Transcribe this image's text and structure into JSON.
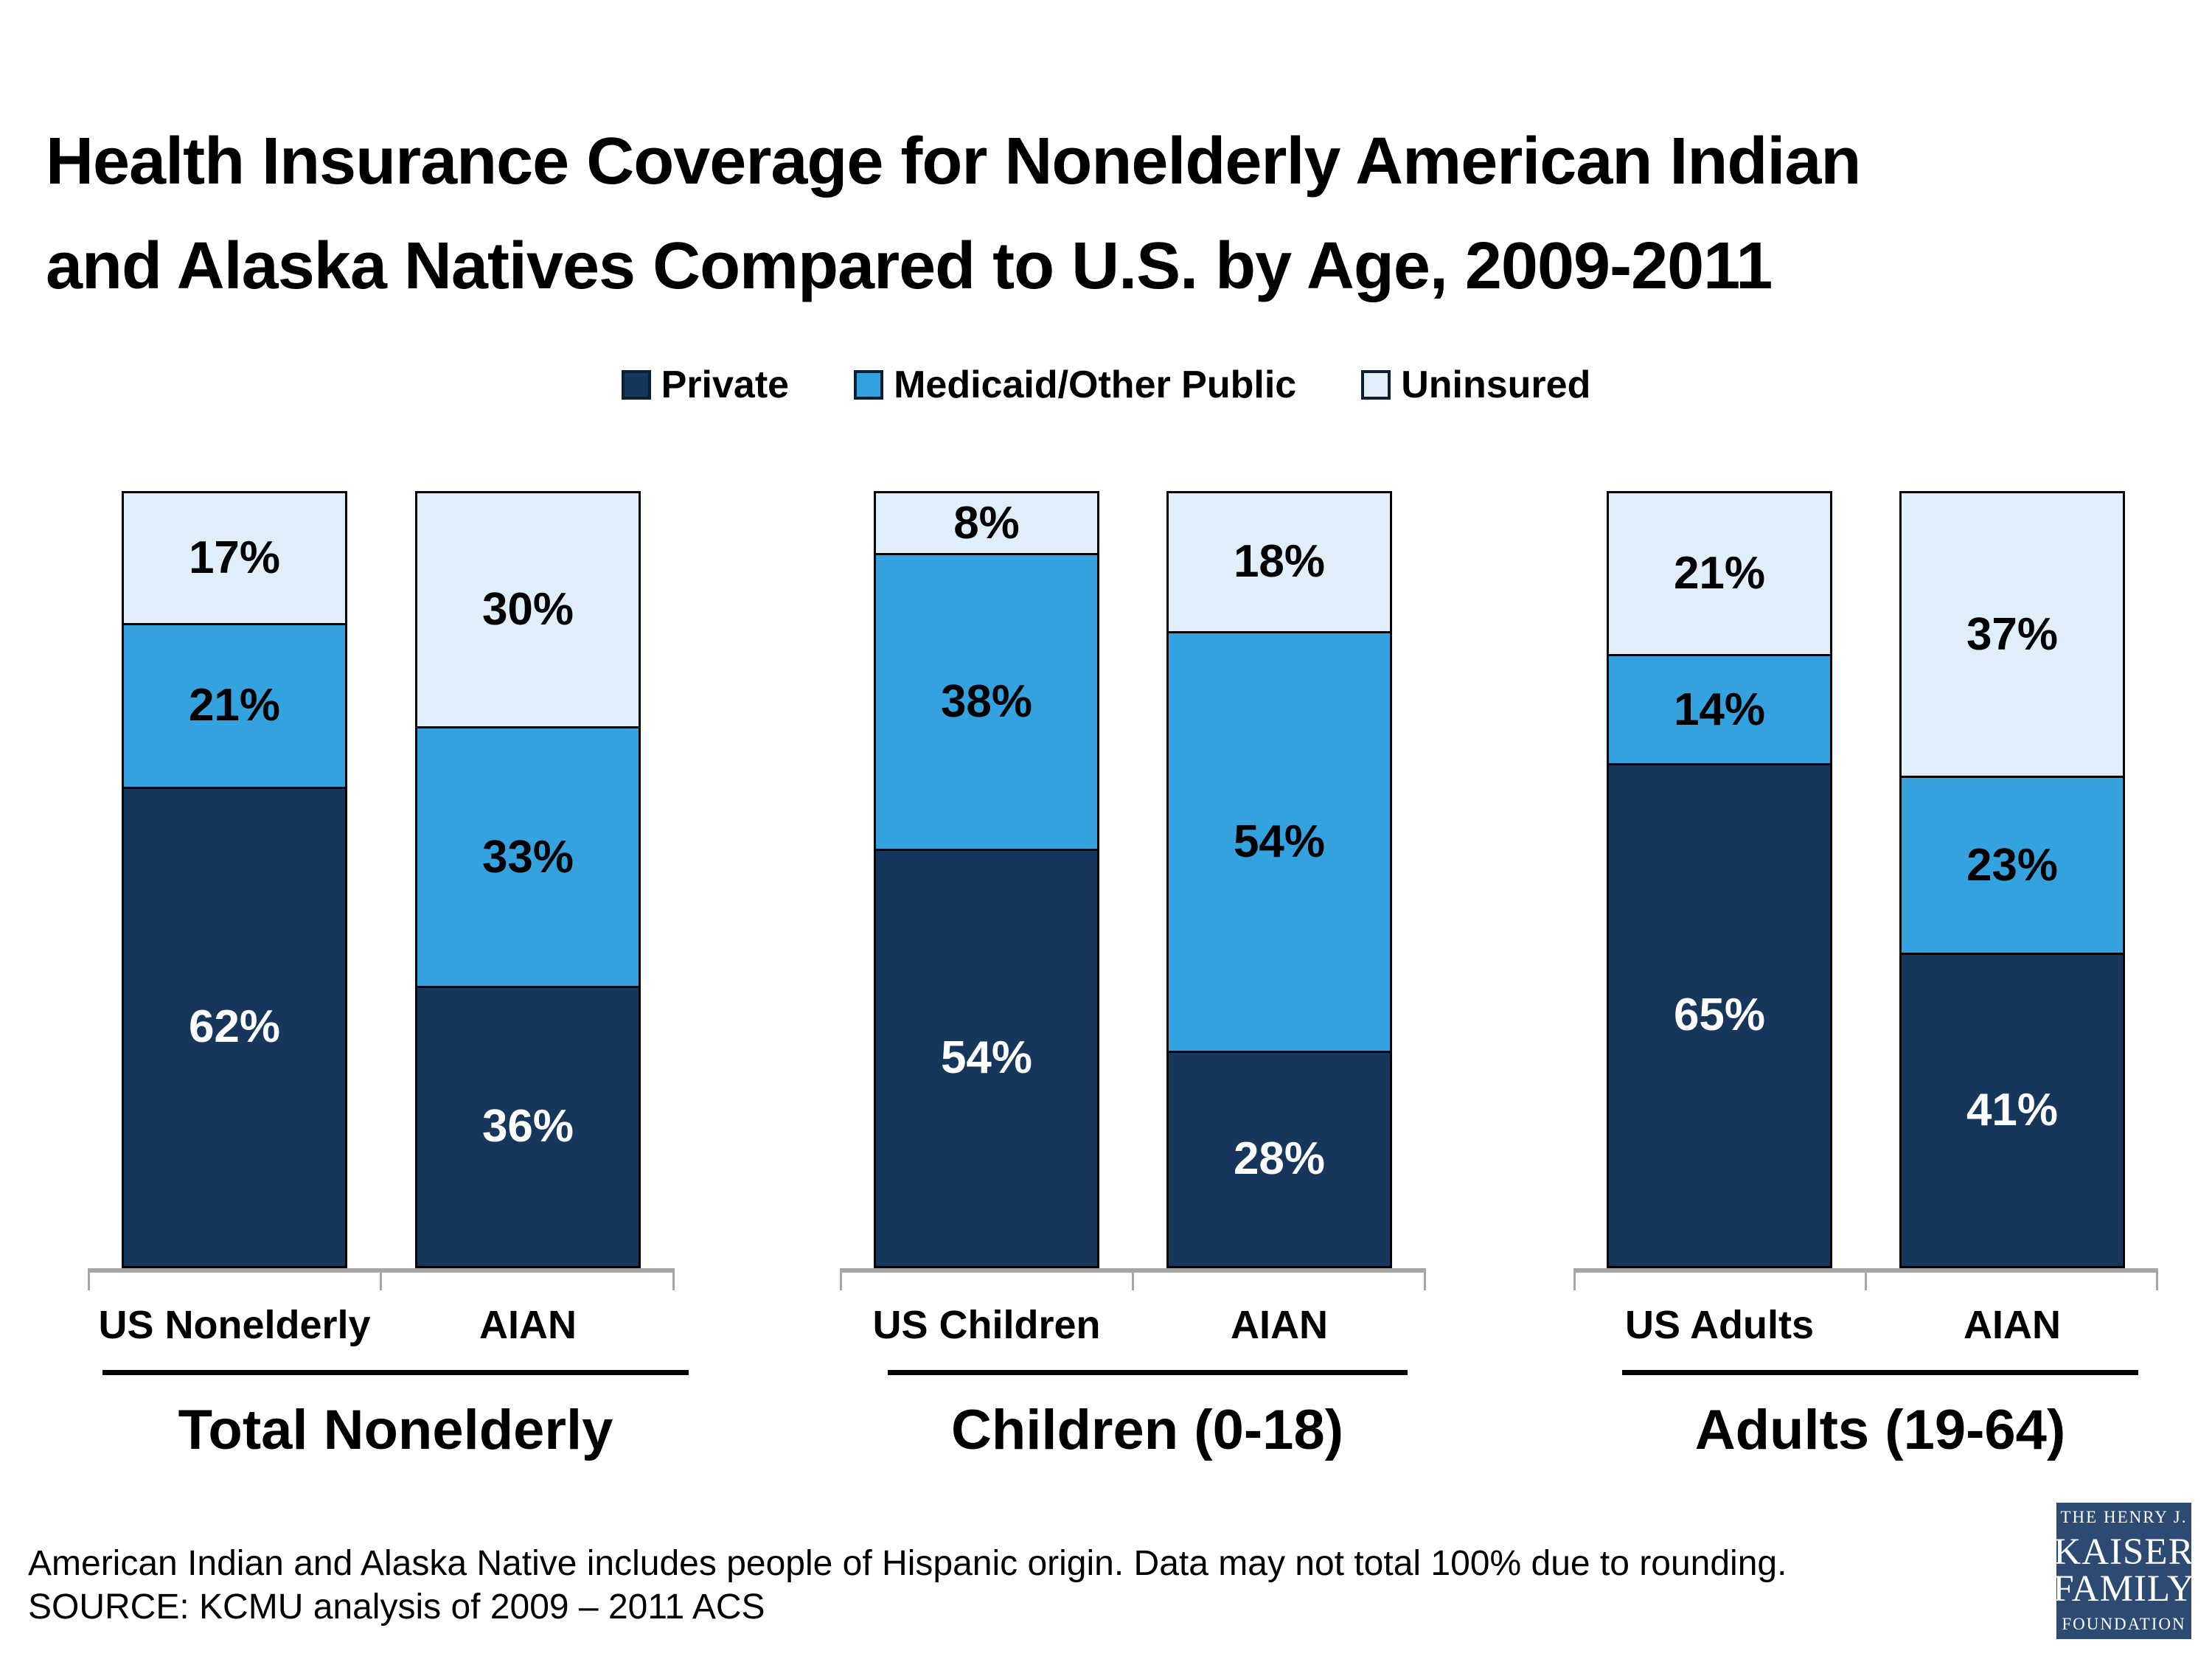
{
  "title": "Health Insurance Coverage for Nonelderly American Indian\nand Alaska Natives Compared to U.S. by Age, 2009-2011",
  "legend": [
    {
      "label": "Private",
      "color": "#16365c"
    },
    {
      "label": "Medicaid/Other Public",
      "color": "#34a2df"
    },
    {
      "label": "Uninsured",
      "color": "#dfeef8"
    }
  ],
  "chart_data": {
    "type": "bar",
    "stacked": true,
    "unit": "percent",
    "value_suffix": "%",
    "series": [
      "Private",
      "Medicaid/Other Public",
      "Uninsured"
    ],
    "series_colors": [
      "#16365c",
      "#34a2df",
      "#dfeef8"
    ],
    "series_label_text_colors": [
      "#ffffff",
      "#000000",
      "#000000"
    ],
    "ylim": [
      0,
      100
    ],
    "grid": false,
    "legend_position": "top-center",
    "groups": [
      {
        "label": "Total Nonelderly",
        "bars": [
          {
            "category": "US Nonelderly",
            "values": [
              62,
              21,
              17
            ]
          },
          {
            "category": "AIAN",
            "values": [
              36,
              33,
              30
            ]
          }
        ]
      },
      {
        "label": "Children (0-18)",
        "bars": [
          {
            "category": "US Children",
            "values": [
              54,
              38,
              8
            ]
          },
          {
            "category": "AIAN",
            "values": [
              28,
              54,
              18
            ]
          }
        ]
      },
      {
        "label": "Adults (19-64)",
        "bars": [
          {
            "category": "US Adults",
            "values": [
              65,
              14,
              21
            ]
          },
          {
            "category": "AIAN",
            "values": [
              41,
              23,
              37
            ]
          }
        ]
      }
    ]
  },
  "footnote": {
    "line1": "American Indian and Alaska Native includes people of Hispanic origin. Data may not total 100% due to rounding.",
    "line2": "SOURCE: KCMU analysis of 2009 – 2011 ACS"
  },
  "logo": {
    "line1": "THE HENRY J.",
    "line2": "KAISER",
    "line3": "FAMILY",
    "line4": "FOUNDATION",
    "bg_color": "#2c4a72"
  },
  "style_colors": {
    "axis_gray": "#a6a6a6",
    "separator_black": "#000000",
    "text_black": "#000000"
  }
}
